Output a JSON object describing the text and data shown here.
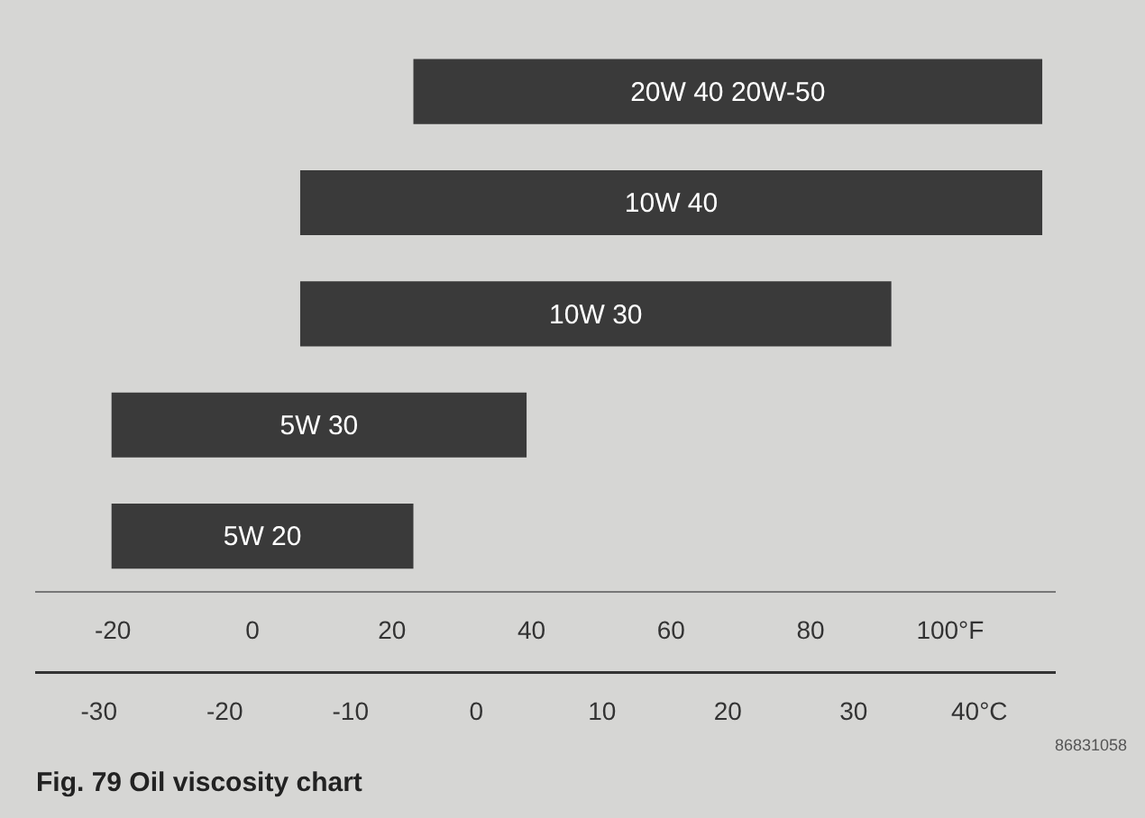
{
  "chart_data": {
    "type": "bar",
    "orientation": "horizontal",
    "title": "Fig. 79 Oil viscosity chart",
    "categories": [
      "20W 40 20W-50",
      "10W 40",
      "10W 30",
      "5W 30",
      "5W 20"
    ],
    "base": [
      -5,
      -14,
      -14,
      -29,
      -29
    ],
    "values": [
      50,
      59,
      47,
      33,
      24
    ],
    "color": "#3a3a3a",
    "xlim": [
      -35,
      46
    ],
    "xticks": [
      -30,
      -20,
      -10,
      0,
      10,
      20,
      30,
      {
        "value": 40,
        "label": "40°C"
      }
    ],
    "x2lim": [
      -31,
      115
    ],
    "x2ticks": [
      -20,
      0,
      20,
      40,
      60,
      80,
      {
        "value": 100,
        "label": "100°F"
      }
    ],
    "annotations": [
      "86831058"
    ]
  }
}
